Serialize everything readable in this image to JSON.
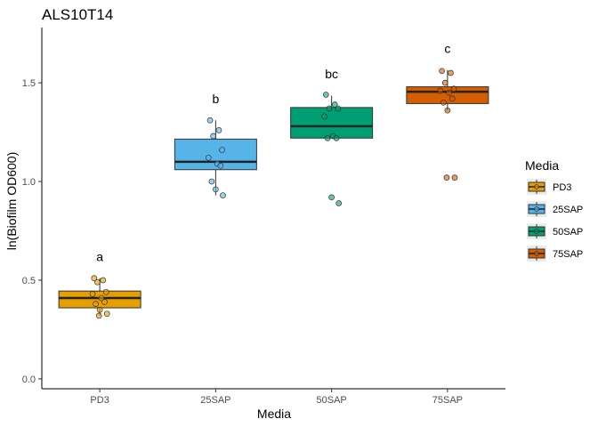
{
  "chart_data": {
    "type": "boxplot",
    "title": "ALS10T14",
    "xlabel": "Media",
    "ylabel": "ln(Biofilm OD600)",
    "ylim": [
      -0.05,
      1.78
    ],
    "yticks": [
      0.0,
      0.5,
      1.0,
      1.5
    ],
    "ytick_labels": [
      "0.0",
      "0.5",
      "1.0",
      "1.5"
    ],
    "categories": [
      "PD3",
      "25SAP",
      "50SAP",
      "75SAP"
    ],
    "colors": [
      "#E69F00",
      "#56B4E9",
      "#009E73",
      "#D55E00"
    ],
    "boxes": [
      {
        "category": "PD3",
        "whisker_low": 0.32,
        "q1": 0.36,
        "median": 0.41,
        "q3": 0.445,
        "whisker_high": 0.51
      },
      {
        "category": "25SAP",
        "whisker_low": 0.93,
        "q1": 1.06,
        "median": 1.1,
        "q3": 1.215,
        "whisker_high": 1.31
      },
      {
        "category": "50SAP",
        "whisker_low": 1.22,
        "q1": 1.22,
        "median": 1.28,
        "q3": 1.375,
        "whisker_high": 1.435
      },
      {
        "category": "75SAP",
        "whisker_low": 1.36,
        "q1": 1.395,
        "median": 1.455,
        "q3": 1.48,
        "whisker_high": 1.565
      }
    ],
    "points": [
      {
        "category": "PD3",
        "values": [
          0.51,
          0.5,
          0.49,
          0.44,
          0.43,
          0.41,
          0.39,
          0.38,
          0.35,
          0.33,
          0.32
        ]
      },
      {
        "category": "25SAP",
        "values": [
          1.31,
          1.26,
          1.23,
          1.16,
          1.12,
          1.09,
          1.08,
          1.0,
          0.96,
          0.93
        ]
      },
      {
        "category": "50SAP",
        "values": [
          1.44,
          1.39,
          1.37,
          1.37,
          1.33,
          1.23,
          1.22,
          1.22,
          0.92,
          0.89
        ]
      },
      {
        "category": "75SAP",
        "values": [
          1.56,
          1.55,
          1.5,
          1.47,
          1.46,
          1.45,
          1.42,
          1.4,
          1.36,
          1.02,
          1.02
        ]
      }
    ],
    "significance_letters": [
      {
        "category": "PD3",
        "label": "a",
        "y": 0.62
      },
      {
        "category": "25SAP",
        "label": "b",
        "y": 1.42
      },
      {
        "category": "50SAP",
        "label": "bc",
        "y": 1.545
      },
      {
        "category": "75SAP",
        "label": "c",
        "y": 1.675
      }
    ],
    "legend": {
      "title": "Media",
      "position": "right",
      "entries": [
        "PD3",
        "25SAP",
        "50SAP",
        "75SAP"
      ]
    }
  }
}
